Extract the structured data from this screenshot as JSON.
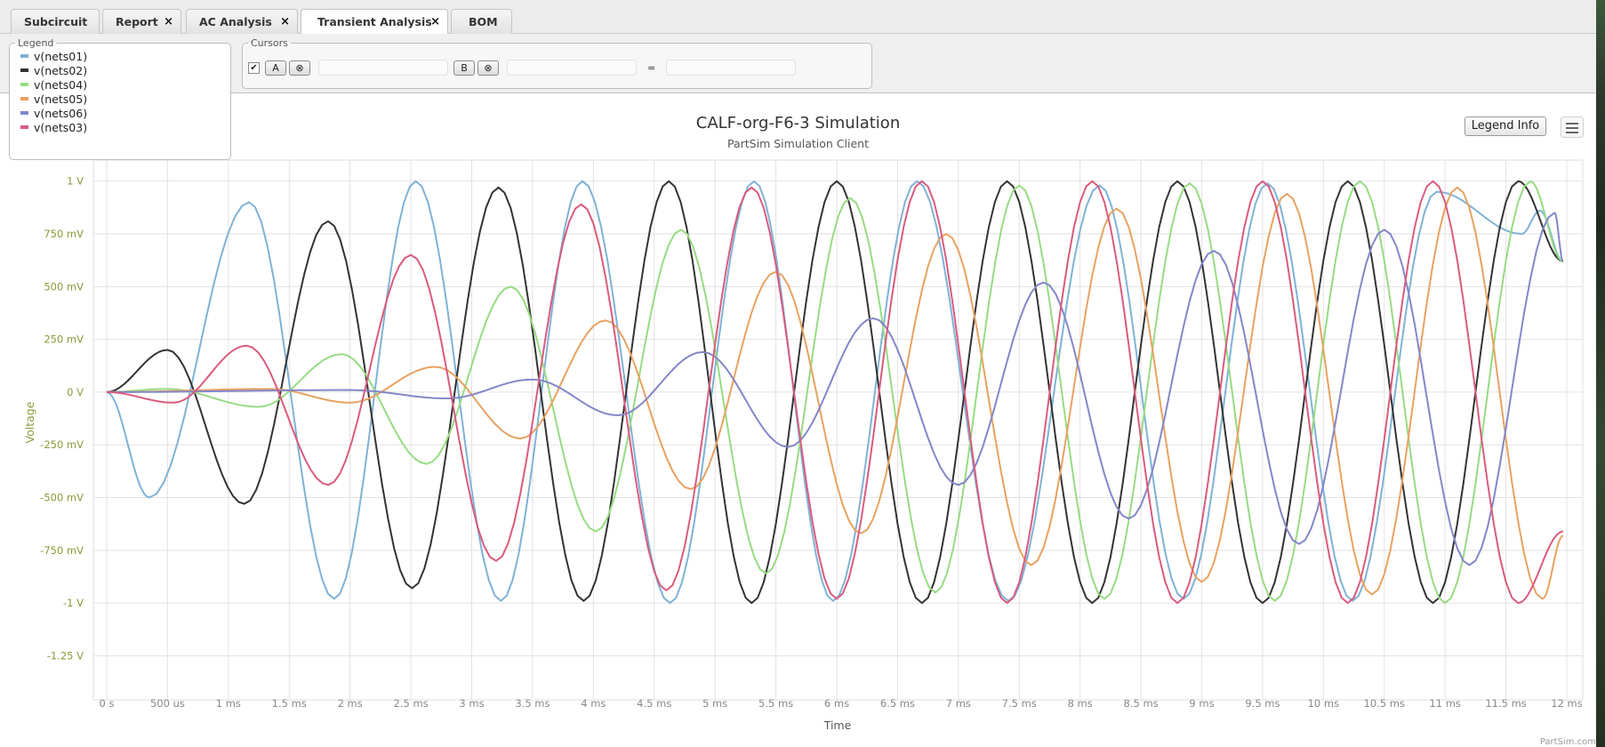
{
  "tabs": [
    {
      "label": "Subcircuit",
      "closable": false,
      "active": false
    },
    {
      "label": "Report",
      "closable": true,
      "active": false
    },
    {
      "label": "AC Analysis",
      "closable": true,
      "active": false
    },
    {
      "label": "Transient Analysis",
      "closable": true,
      "active": true
    },
    {
      "label": "BOM",
      "closable": false,
      "active": false
    }
  ],
  "close_glyph": "×",
  "legend_panel": {
    "title": "Legend",
    "items": [
      {
        "label": "v(nets01)",
        "color": "#7fb2d7"
      },
      {
        "label": "v(nets02)",
        "color": "#333333"
      },
      {
        "label": "v(nets04)",
        "color": "#96dc82"
      },
      {
        "label": "v(nets05)",
        "color": "#e8a261"
      },
      {
        "label": "v(nets06)",
        "color": "#8486c9"
      },
      {
        "label": "v(nets03)",
        "color": "#d95b7d"
      }
    ]
  },
  "cursors": {
    "title": "Cursors",
    "checked": true,
    "check_glyph": "✔",
    "cursor_a_label": "A",
    "cursor_b_label": "B",
    "clear_glyph": "⊗",
    "equals": "=",
    "value_a": "",
    "value_b": "",
    "delta": ""
  },
  "toolbar_buttons": {
    "legend_info": "Legend Info"
  },
  "credit": "PartSim.com",
  "chart_data": {
    "type": "line",
    "title": "CALF-org-F6-3 Simulation",
    "subtitle": "PartSim Simulation Client",
    "xlabel": "Time",
    "ylabel": "Voltage",
    "xlim": [
      0,
      0.012
    ],
    "ylim": [
      -1.4,
      1.1
    ],
    "x_ticks": [
      {
        "value": 0,
        "label": "0 s"
      },
      {
        "value": 0.0005,
        "label": "500 us"
      },
      {
        "value": 0.001,
        "label": "1 ms"
      },
      {
        "value": 0.0015,
        "label": "1.5 ms"
      },
      {
        "value": 0.002,
        "label": "2 ms"
      },
      {
        "value": 0.0025,
        "label": "2.5 ms"
      },
      {
        "value": 0.003,
        "label": "3 ms"
      },
      {
        "value": 0.0035,
        "label": "3.5 ms"
      },
      {
        "value": 0.004,
        "label": "4 ms"
      },
      {
        "value": 0.0045,
        "label": "4.5 ms"
      },
      {
        "value": 0.005,
        "label": "5 ms"
      },
      {
        "value": 0.0055,
        "label": "5.5 ms"
      },
      {
        "value": 0.006,
        "label": "6 ms"
      },
      {
        "value": 0.0065,
        "label": "6.5 ms"
      },
      {
        "value": 0.007,
        "label": "7 ms"
      },
      {
        "value": 0.0075,
        "label": "7.5 ms"
      },
      {
        "value": 0.008,
        "label": "8 ms"
      },
      {
        "value": 0.0085,
        "label": "8.5 ms"
      },
      {
        "value": 0.009,
        "label": "9 ms"
      },
      {
        "value": 0.0095,
        "label": "9.5 ms"
      },
      {
        "value": 0.01,
        "label": "10 ms"
      },
      {
        "value": 0.0105,
        "label": "10.5 ms"
      },
      {
        "value": 0.011,
        "label": "11 ms"
      },
      {
        "value": 0.0115,
        "label": "11.5 ms"
      },
      {
        "value": 0.012,
        "label": "12 ms"
      }
    ],
    "y_ticks": [
      {
        "value": 1,
        "label": "1 V"
      },
      {
        "value": 0.75,
        "label": "750 mV"
      },
      {
        "value": 0.5,
        "label": "500 mV"
      },
      {
        "value": 0.25,
        "label": "250 mV"
      },
      {
        "value": 0,
        "label": "0 V"
      },
      {
        "value": -0.25,
        "label": "-250 mV"
      },
      {
        "value": -0.5,
        "label": "-500 mV"
      },
      {
        "value": -0.75,
        "label": "-750 mV"
      },
      {
        "value": -1,
        "label": "-1 V"
      },
      {
        "value": -1.25,
        "label": "-1.25 V"
      }
    ],
    "grid": true,
    "series": [
      {
        "name": "v(nets01)",
        "color": "#7fb2d7",
        "x": [
          0,
          0.00035,
          0.00117,
          0.00187,
          0.00254,
          0.00324,
          0.00391,
          0.00463,
          0.00532,
          0.00597,
          0.00666,
          0.00741,
          0.00816,
          0.00885,
          0.00954,
          0.01024,
          0.01093,
          0.01163,
          0.01178,
          0.01197
        ],
        "y": [
          0,
          -0.5,
          0.9,
          -0.98,
          1.0,
          -0.99,
          1.0,
          -1.0,
          1.0,
          -0.99,
          1.0,
          -0.99,
          0.98,
          -0.98,
          0.99,
          -0.99,
          0.95,
          0.75,
          0.86,
          0.62
        ]
      },
      {
        "name": "v(nets02)",
        "color": "#333333",
        "x": [
          0,
          0.0005,
          0.00113,
          0.00182,
          0.00251,
          0.00322,
          0.00392,
          0.00462,
          0.0053,
          0.006,
          0.0067,
          0.0074,
          0.0081,
          0.0088,
          0.0095,
          0.0102,
          0.0109,
          0.0116,
          0.01197
        ],
        "y": [
          0,
          0.2,
          -0.53,
          0.81,
          -0.93,
          0.97,
          -0.99,
          1.0,
          -1.0,
          1.0,
          -1.0,
          1.0,
          -1.0,
          1.0,
          -1.0,
          1.0,
          -1.0,
          1.0,
          0.62
        ]
      },
      {
        "name": "v(nets04)",
        "color": "#96dc82",
        "x": [
          0,
          0.0005,
          0.00125,
          0.00193,
          0.00263,
          0.00332,
          0.00402,
          0.00472,
          0.00542,
          0.00611,
          0.00681,
          0.0075,
          0.0082,
          0.0089,
          0.0096,
          0.0103,
          0.011,
          0.0117,
          0.01197
        ],
        "y": [
          0,
          0.015,
          -0.07,
          0.18,
          -0.34,
          0.5,
          -0.66,
          0.77,
          -0.86,
          0.92,
          -0.95,
          0.98,
          -0.98,
          0.99,
          -0.99,
          1.0,
          -1.0,
          1.0,
          0.62
        ]
      },
      {
        "name": "v(nets05)",
        "color": "#e8a261",
        "x": [
          0,
          0.00135,
          0.002,
          0.0027,
          0.0034,
          0.0041,
          0.0048,
          0.0055,
          0.0062,
          0.0069,
          0.0076,
          0.0083,
          0.009,
          0.0097,
          0.0104,
          0.0111,
          0.0118,
          0.01197
        ],
        "y": [
          0,
          0.015,
          -0.05,
          0.12,
          -0.22,
          0.34,
          -0.46,
          0.57,
          -0.67,
          0.75,
          -0.82,
          0.87,
          -0.9,
          0.94,
          -0.96,
          0.97,
          -0.98,
          -0.68
        ]
      },
      {
        "name": "v(nets06)",
        "color": "#8486c9",
        "x": [
          0,
          0.002,
          0.0028,
          0.0035,
          0.0042,
          0.0049,
          0.0056,
          0.0063,
          0.007,
          0.0077,
          0.0084,
          0.0091,
          0.0098,
          0.0105,
          0.0112,
          0.0119,
          0.01197
        ],
        "y": [
          0,
          0.01,
          -0.03,
          0.06,
          -0.11,
          0.19,
          -0.26,
          0.35,
          -0.44,
          0.52,
          -0.6,
          0.67,
          -0.72,
          0.77,
          -0.82,
          0.85,
          0.62
        ]
      },
      {
        "name": "v(nets03)",
        "color": "#d95b7d",
        "x": [
          0,
          0.00055,
          0.00115,
          0.00182,
          0.0025,
          0.0032,
          0.0039,
          0.0046,
          0.0053,
          0.006,
          0.0067,
          0.0074,
          0.0081,
          0.0088,
          0.0095,
          0.0102,
          0.0109,
          0.0116,
          0.01197
        ],
        "y": [
          0,
          -0.05,
          0.22,
          -0.44,
          0.65,
          -0.8,
          0.89,
          -0.94,
          0.97,
          -0.98,
          1.0,
          -1.0,
          1.0,
          -1.0,
          1.0,
          -1.0,
          1.0,
          -1.0,
          -0.66
        ]
      }
    ]
  }
}
